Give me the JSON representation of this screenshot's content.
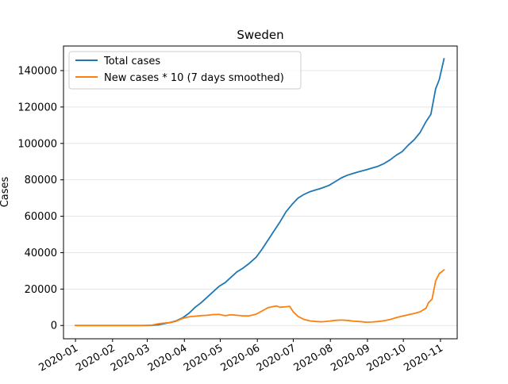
{
  "chart_data": {
    "type": "line",
    "title": "Sweden",
    "xlabel": "",
    "ylabel": "Cases",
    "grid": "horizontal",
    "legend_placement": "top-left",
    "x_range": [
      "2019-12-22",
      "2020-11-15"
    ],
    "ylim": [
      -7300,
      153500
    ],
    "x_ticks": [
      {
        "date": "2020-01-01",
        "label": "2020-01"
      },
      {
        "date": "2020-02-01",
        "label": "2020-02"
      },
      {
        "date": "2020-03-01",
        "label": "2020-03"
      },
      {
        "date": "2020-04-01",
        "label": "2020-04"
      },
      {
        "date": "2020-05-01",
        "label": "2020-05"
      },
      {
        "date": "2020-06-01",
        "label": "2020-06"
      },
      {
        "date": "2020-07-01",
        "label": "2020-07"
      },
      {
        "date": "2020-08-01",
        "label": "2020-08"
      },
      {
        "date": "2020-09-01",
        "label": "2020-09"
      },
      {
        "date": "2020-10-01",
        "label": "2020-10"
      },
      {
        "date": "2020-11-01",
        "label": "2020-11"
      }
    ],
    "y_ticks": [
      0,
      20000,
      40000,
      60000,
      80000,
      100000,
      120000,
      140000
    ],
    "series": [
      {
        "name": "Total cases",
        "color": "#1f77b4",
        "points": [
          [
            "2020-01-01",
            0
          ],
          [
            "2020-01-31",
            1
          ],
          [
            "2020-02-26",
            7
          ],
          [
            "2020-03-01",
            14
          ],
          [
            "2020-03-05",
            100
          ],
          [
            "2020-03-10",
            350
          ],
          [
            "2020-03-15",
            1000
          ],
          [
            "2020-03-20",
            1650
          ],
          [
            "2020-03-25",
            2500
          ],
          [
            "2020-03-31",
            4400
          ],
          [
            "2020-04-05",
            6800
          ],
          [
            "2020-04-10",
            10000
          ],
          [
            "2020-04-15",
            12500
          ],
          [
            "2020-04-20",
            15500
          ],
          [
            "2020-04-25",
            18500
          ],
          [
            "2020-04-30",
            21500
          ],
          [
            "2020-05-05",
            23500
          ],
          [
            "2020-05-10",
            26500
          ],
          [
            "2020-05-15",
            29500
          ],
          [
            "2020-05-20",
            31500
          ],
          [
            "2020-05-25",
            34000
          ],
          [
            "2020-05-31",
            37500
          ],
          [
            "2020-06-05",
            42000
          ],
          [
            "2020-06-10",
            47000
          ],
          [
            "2020-06-15",
            52000
          ],
          [
            "2020-06-20",
            57000
          ],
          [
            "2020-06-25",
            62500
          ],
          [
            "2020-06-30",
            66500
          ],
          [
            "2020-07-05",
            70000
          ],
          [
            "2020-07-10",
            72000
          ],
          [
            "2020-07-15",
            73500
          ],
          [
            "2020-07-20",
            74500
          ],
          [
            "2020-07-25",
            75500
          ],
          [
            "2020-07-31",
            77000
          ],
          [
            "2020-08-05",
            79000
          ],
          [
            "2020-08-10",
            81000
          ],
          [
            "2020-08-15",
            82500
          ],
          [
            "2020-08-20",
            83500
          ],
          [
            "2020-08-25",
            84500
          ],
          [
            "2020-08-31",
            85500
          ],
          [
            "2020-09-05",
            86500
          ],
          [
            "2020-09-10",
            87500
          ],
          [
            "2020-09-15",
            89000
          ],
          [
            "2020-09-20",
            91000
          ],
          [
            "2020-09-25",
            93500
          ],
          [
            "2020-09-30",
            95500
          ],
          [
            "2020-10-05",
            99000
          ],
          [
            "2020-10-10",
            102000
          ],
          [
            "2020-10-15",
            106000
          ],
          [
            "2020-10-20",
            112000
          ],
          [
            "2020-10-24",
            116000
          ],
          [
            "2020-10-28",
            130000
          ],
          [
            "2020-10-31",
            135000
          ],
          [
            "2020-11-04",
            146500
          ]
        ]
      },
      {
        "name": "New cases * 10 (7 days smoothed)",
        "color": "#ff7f0e",
        "points": [
          [
            "2020-01-01",
            0
          ],
          [
            "2020-02-26",
            0
          ],
          [
            "2020-03-05",
            200
          ],
          [
            "2020-03-10",
            900
          ],
          [
            "2020-03-15",
            1300
          ],
          [
            "2020-03-20",
            1600
          ],
          [
            "2020-03-25",
            2300
          ],
          [
            "2020-03-31",
            4000
          ],
          [
            "2020-04-05",
            4800
          ],
          [
            "2020-04-10",
            5100
          ],
          [
            "2020-04-15",
            5400
          ],
          [
            "2020-04-20",
            5600
          ],
          [
            "2020-04-25",
            6000
          ],
          [
            "2020-04-30",
            6100
          ],
          [
            "2020-05-05",
            5400
          ],
          [
            "2020-05-10",
            5900
          ],
          [
            "2020-05-15",
            5600
          ],
          [
            "2020-05-20",
            5300
          ],
          [
            "2020-05-25",
            5300
          ],
          [
            "2020-05-31",
            6200
          ],
          [
            "2020-06-05",
            8000
          ],
          [
            "2020-06-10",
            9800
          ],
          [
            "2020-06-15",
            10500
          ],
          [
            "2020-06-17",
            10700
          ],
          [
            "2020-06-20",
            10000
          ],
          [
            "2020-06-25",
            10300
          ],
          [
            "2020-06-28",
            10500
          ],
          [
            "2020-07-01",
            7500
          ],
          [
            "2020-07-05",
            5000
          ],
          [
            "2020-07-10",
            3300
          ],
          [
            "2020-07-15",
            2500
          ],
          [
            "2020-07-20",
            2200
          ],
          [
            "2020-07-25",
            2000
          ],
          [
            "2020-07-31",
            2400
          ],
          [
            "2020-08-05",
            2800
          ],
          [
            "2020-08-10",
            3000
          ],
          [
            "2020-08-15",
            2800
          ],
          [
            "2020-08-20",
            2400
          ],
          [
            "2020-08-25",
            2200
          ],
          [
            "2020-08-31",
            1800
          ],
          [
            "2020-09-05",
            1900
          ],
          [
            "2020-09-10",
            2200
          ],
          [
            "2020-09-15",
            2600
          ],
          [
            "2020-09-20",
            3300
          ],
          [
            "2020-09-25",
            4300
          ],
          [
            "2020-09-30",
            5100
          ],
          [
            "2020-10-05",
            5900
          ],
          [
            "2020-10-10",
            6600
          ],
          [
            "2020-10-15",
            7500
          ],
          [
            "2020-10-20",
            9500
          ],
          [
            "2020-10-22",
            12500
          ],
          [
            "2020-10-25",
            14500
          ],
          [
            "2020-10-28",
            24500
          ],
          [
            "2020-10-31",
            28500
          ],
          [
            "2020-11-04",
            30500
          ]
        ]
      }
    ]
  }
}
